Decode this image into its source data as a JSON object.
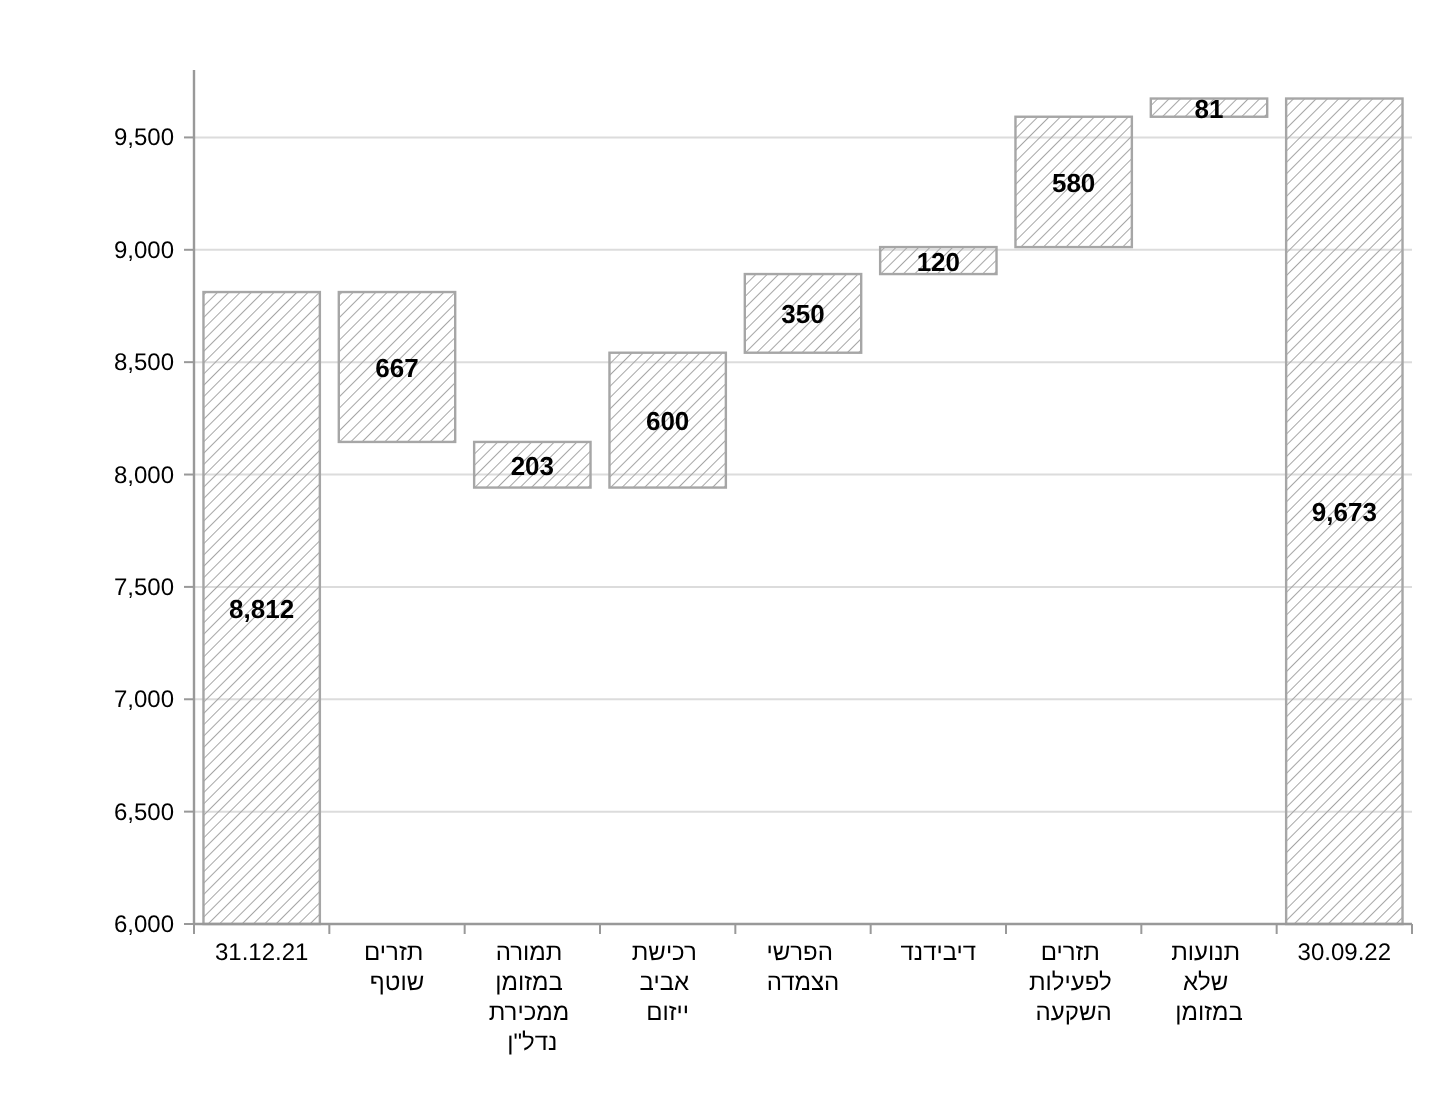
{
  "chart_data": {
    "type": "bar",
    "categories": [
      "31.12.21",
      "תזרים שוטף",
      "תמורה במזומן ממכירת נדל\"ן",
      "רכישת אביב ייזום",
      "הפרשי הצמדה",
      "דיבידנד",
      "תזרים לפעילות השקעה",
      "תנועות שלא במזומן",
      "30.09.22"
    ],
    "values": [
      8812,
      -667,
      -203,
      600,
      350,
      120,
      580,
      81,
      9673
    ],
    "base": [
      null,
      8812,
      8145,
      7942,
      8542,
      8892,
      9012,
      9592,
      null
    ],
    "value_labels": [
      "8,812",
      "667",
      "203",
      "600",
      "350",
      "120",
      "580",
      "81",
      "9,673"
    ],
    "color": "#a6a6a6",
    "ylim": [
      6000,
      9800
    ],
    "yticks": [
      {
        "value": 6000,
        "label": "6,000"
      },
      {
        "value": 6500,
        "label": "6,500"
      },
      {
        "value": 7000,
        "label": "7,000"
      },
      {
        "value": 7500,
        "label": "7,500"
      },
      {
        "value": 8000,
        "label": "8,000"
      },
      {
        "value": 8500,
        "label": "8,500"
      },
      {
        "value": 9000,
        "label": "9,000"
      },
      {
        "value": 9500,
        "label": "9,500"
      }
    ],
    "grid": "y"
  }
}
